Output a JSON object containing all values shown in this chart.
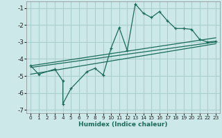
{
  "xlabel": "Humidex (Indice chaleur)",
  "bg_color": "#cce8e8",
  "grid_color": "#aacfcf",
  "line_color": "#1a6b5a",
  "xlim": [
    -0.5,
    23.5
  ],
  "ylim": [
    -7.2,
    -0.6
  ],
  "yticks": [
    -7,
    -6,
    -5,
    -4,
    -3,
    -2,
    -1
  ],
  "xticks": [
    0,
    1,
    2,
    3,
    4,
    5,
    6,
    7,
    8,
    9,
    10,
    11,
    12,
    13,
    14,
    15,
    16,
    17,
    18,
    19,
    20,
    21,
    22,
    23
  ],
  "line1_x": [
    0,
    1,
    3,
    4,
    4,
    5,
    7,
    8,
    9,
    10,
    11,
    12,
    13,
    14,
    15,
    16,
    17,
    18,
    19,
    20,
    21,
    22,
    23
  ],
  "line1_y": [
    -4.4,
    -4.9,
    -4.6,
    -5.3,
    -6.65,
    -5.75,
    -4.75,
    -4.55,
    -4.95,
    -3.35,
    -2.15,
    -3.5,
    -0.75,
    -1.3,
    -1.55,
    -1.2,
    -1.75,
    -2.2,
    -2.2,
    -2.25,
    -2.85,
    -3.0,
    -2.95
  ],
  "line2_x": [
    0,
    23
  ],
  "line2_y": [
    -4.4,
    -2.75
  ],
  "line3_x": [
    0,
    23
  ],
  "line3_y": [
    -4.5,
    -3.0
  ],
  "line4_x": [
    0,
    23
  ],
  "line4_y": [
    -4.9,
    -3.1
  ]
}
